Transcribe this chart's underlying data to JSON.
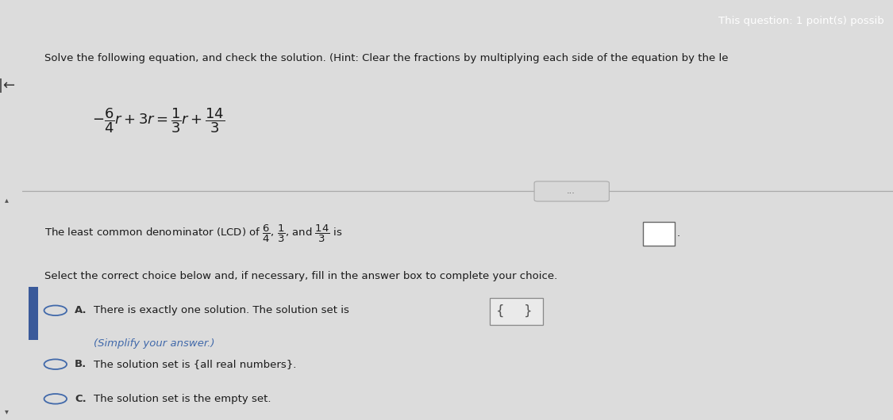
{
  "bg_color": "#dcdcdc",
  "header_color": "#8B2252",
  "header_text": "This question: 1 point(s) possib",
  "left_panel_color": "#b8b8b8",
  "main_bg": "#e8e6e0",
  "title_text": "Solve the following equation, and check the solution. (Hint: Clear the fractions by multiplying each side of the equation by the le",
  "select_text": "Select the correct choice below and, if necessary, fill in the answer box to complete your choice.",
  "choice_A_text": "There is exactly one solution. The solution set is",
  "choice_A_subtext": "(Simplify your answer.)",
  "choice_B_text": "The solution set is {all real numbers}.",
  "choice_C_text": "The solution set is the empty set.",
  "text_color": "#1a1a1a",
  "blue_color": "#4169AA",
  "circle_color": "#4169AA",
  "dark_gray": "#444444",
  "label_bold_color": "#333333"
}
